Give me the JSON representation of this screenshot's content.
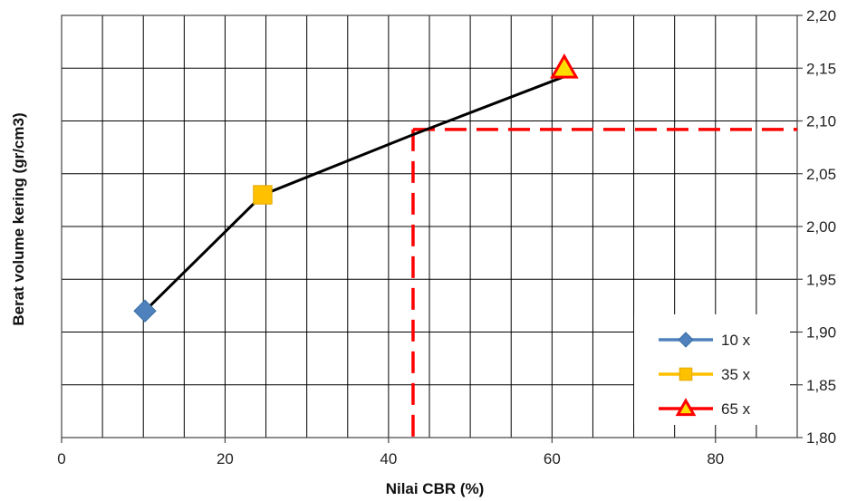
{
  "chart_data": {
    "type": "scatter",
    "xlabel": "Nilai  CBR (%)",
    "ylabel": "Berat volume  kering  (gr/cm3)",
    "xlim": [
      0,
      90
    ],
    "ylim": [
      1.8,
      2.2
    ],
    "x_ticks": [
      "0",
      "20",
      "40",
      "60",
      "80"
    ],
    "y_ticks": [
      "1,80",
      "1,85",
      "1,90",
      "1,95",
      "2,00",
      "2,05",
      "2,10",
      "2,15",
      "2,20"
    ],
    "y_axis_side": "right",
    "grid": true,
    "legend_position": "bottom-right",
    "series": [
      {
        "name": "10 x",
        "x": [
          10.2
        ],
        "y": [
          1.92
        ],
        "color": "#4f81bd",
        "marker": "diamond"
      },
      {
        "name": "35 x",
        "x": [
          24.6
        ],
        "y": [
          2.03
        ],
        "color": "#ffc000",
        "marker": "square"
      },
      {
        "name": "65 x",
        "x": [
          61.5
        ],
        "y": [
          2.15
        ],
        "color": "#ff0000",
        "marker": "triangle"
      }
    ],
    "fit_line": {
      "x": [
        10.2,
        24.6,
        43.0,
        61.5
      ],
      "y": [
        1.92,
        2.03,
        2.087,
        2.142
      ],
      "color": "#000000"
    },
    "reference_lines": {
      "x": 43.0,
      "y": 2.092,
      "color": "#ff0000",
      "style": "dashed"
    }
  }
}
